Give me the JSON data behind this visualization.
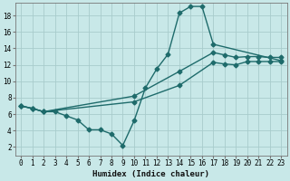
{
  "xlabel": "Humidex (Indice chaleur)",
  "bg_color": "#c8e8e8",
  "grid_color": "#a8cccc",
  "line_color": "#1e6b6b",
  "xlim": [
    -0.5,
    23.5
  ],
  "ylim": [
    1,
    19.5
  ],
  "xticks": [
    0,
    1,
    2,
    3,
    4,
    5,
    6,
    7,
    8,
    9,
    10,
    11,
    12,
    13,
    14,
    15,
    16,
    17,
    18,
    19,
    20,
    21,
    22,
    23
  ],
  "yticks": [
    2,
    4,
    6,
    8,
    10,
    12,
    14,
    16,
    18
  ],
  "line1_x": [
    0,
    1,
    2,
    3,
    4,
    5,
    6,
    7,
    8,
    9,
    10,
    11,
    12,
    13,
    14,
    15,
    16,
    17,
    23
  ],
  "line1_y": [
    7.0,
    6.7,
    6.3,
    6.3,
    5.8,
    5.3,
    4.1,
    4.1,
    3.6,
    2.2,
    5.2,
    9.2,
    11.5,
    13.3,
    18.3,
    19.1,
    19.1,
    14.5,
    12.5
  ],
  "line2_x": [
    0,
    1,
    2,
    10,
    14,
    17,
    18,
    19,
    20,
    21,
    22,
    23
  ],
  "line2_y": [
    7.0,
    6.7,
    6.3,
    8.2,
    11.2,
    13.5,
    13.2,
    12.9,
    13.0,
    13.0,
    12.9,
    12.9
  ],
  "line3_x": [
    0,
    1,
    2,
    10,
    14,
    17,
    18,
    19,
    20,
    21,
    22,
    23
  ],
  "line3_y": [
    7.0,
    6.7,
    6.3,
    7.5,
    9.5,
    12.3,
    12.1,
    12.0,
    12.4,
    12.4,
    12.4,
    12.4
  ],
  "marker": "D",
  "markersize": 2.5,
  "linewidth": 1.0
}
